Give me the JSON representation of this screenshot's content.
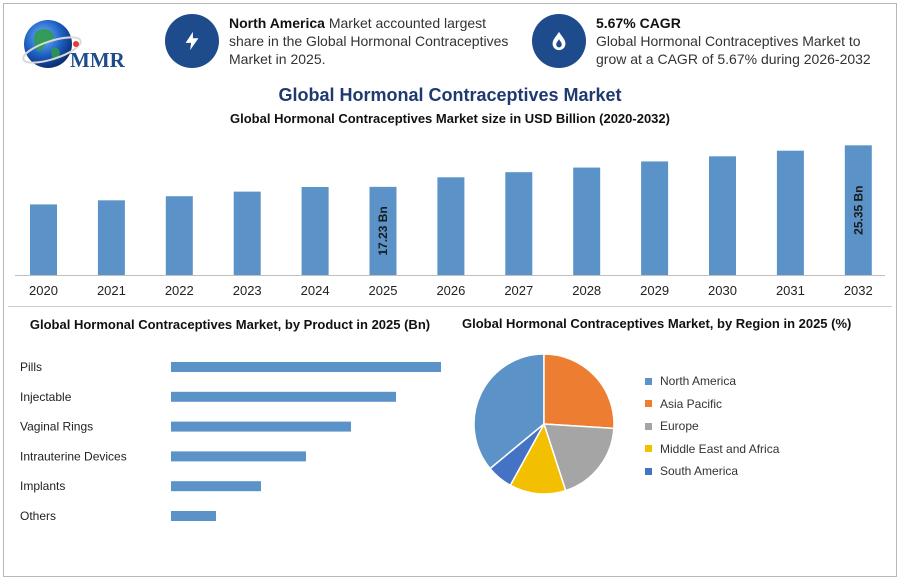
{
  "brand": {
    "logo_text": "MMR"
  },
  "info_cards": [
    {
      "icon": "lightning-bolt-icon",
      "bold": "North America",
      "text": " Market accounted largest share in the Global Hormonal Contraceptives Market in 2025."
    },
    {
      "icon": "flame-drop-icon",
      "bold": "5.67% CAGR",
      "text": "Global Hormonal Contraceptives Market to grow at a CAGR of 5.67% during 2026-2032"
    }
  ],
  "title": "Global Hormonal Contraceptives Market",
  "colors": {
    "bar": "#5b93c8",
    "navy": "#1e4b8b",
    "title": "#1f3a70"
  },
  "chart_data": [
    {
      "type": "bar",
      "title": "Global Hormonal Contraceptives Market size in USD Billion (2020-2032)",
      "categories": [
        "2020",
        "2021",
        "2022",
        "2023",
        "2024",
        "2025",
        "2026",
        "2027",
        "2028",
        "2029",
        "2030",
        "2031",
        "2032"
      ],
      "values": [
        13.8,
        14.6,
        15.4,
        16.3,
        17.2,
        17.23,
        19.1,
        20.1,
        21.0,
        22.2,
        23.2,
        24.3,
        25.35
      ],
      "annotations": [
        {
          "category": "2025",
          "label": "17.23 Bn"
        },
        {
          "category": "2032",
          "label": "25.35 Bn"
        }
      ],
      "ylim": [
        0,
        26
      ],
      "grid": false
    },
    {
      "type": "bar",
      "orientation": "horizontal",
      "title": "Global Hormonal Contraceptives Market, by Product in 2025 (Bn)",
      "categories": [
        "Pills",
        "Injectable",
        "Vaginal Rings",
        "Intrauterine Devices",
        "Implants",
        "Others"
      ],
      "values": [
        6.0,
        5.0,
        4.0,
        3.0,
        2.0,
        1.0
      ],
      "xlim": [
        0,
        6
      ]
    },
    {
      "type": "pie",
      "title": "Global Hormonal Contraceptives Market, by Region in 2025 (%)",
      "labels": [
        "North America",
        "Asia Pacific",
        "Europe",
        "Middle East and Africa",
        "South America"
      ],
      "values": [
        36,
        26,
        19,
        13,
        6
      ],
      "colors": [
        "#5b93c8",
        "#ed7d31",
        "#a5a5a5",
        "#f2c000",
        "#4472c4"
      ],
      "legend_position": "right"
    }
  ]
}
